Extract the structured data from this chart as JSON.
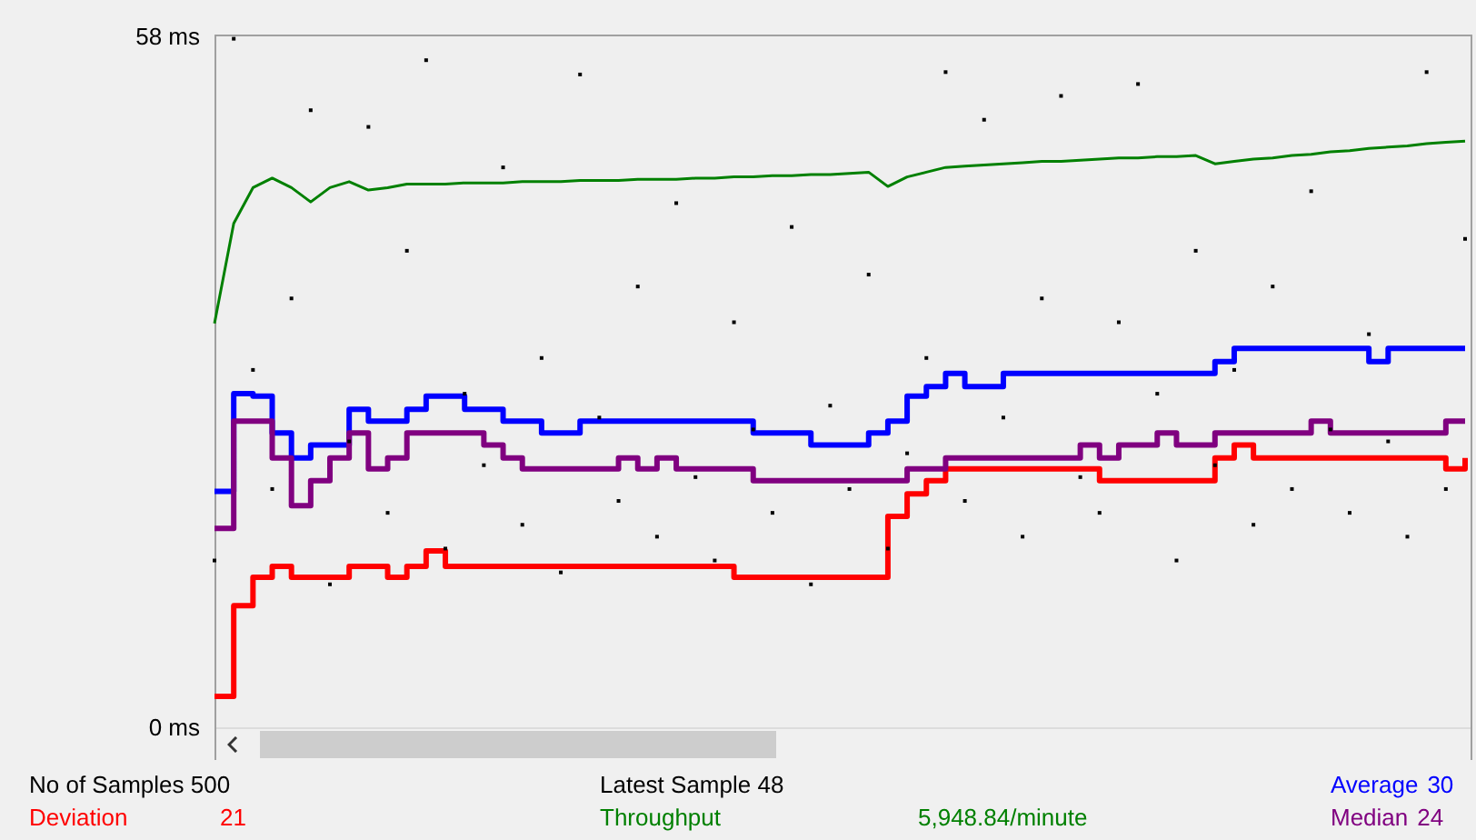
{
  "chart_data": {
    "type": "line",
    "categories": [
      null,
      null,
      null,
      null,
      null,
      null,
      null,
      null,
      null,
      null,
      null,
      null,
      null,
      null,
      null,
      null,
      null,
      null,
      null,
      null,
      null,
      null,
      null,
      null,
      null,
      null,
      null,
      null,
      null,
      null,
      null,
      null,
      null,
      null,
      null,
      null,
      null,
      null,
      null,
      null,
      null,
      null,
      null,
      null,
      null,
      null,
      null,
      null,
      null,
      null,
      null,
      null,
      null,
      null,
      null,
      null,
      null,
      null,
      null,
      null,
      null,
      null,
      null,
      null,
      null,
      null
    ],
    "ylim": [
      0,
      58
    ],
    "yticks": [
      {
        "value": 0,
        "label": "0  ms"
      },
      {
        "value": 58,
        "label": "58  ms"
      }
    ],
    "tick_labels": "y",
    "grid": false,
    "legend": "bottom",
    "series": [
      {
        "type": "scatter",
        "color": "#000000",
        "values": [
          14,
          57.8,
          30,
          20,
          36,
          51.8,
          12,
          24,
          50.4,
          18,
          40,
          56,
          15,
          28,
          22,
          47,
          17,
          31,
          13,
          54.8,
          26,
          19,
          37,
          16,
          44,
          21,
          14,
          34,
          25,
          18,
          42,
          12,
          27,
          20,
          38,
          15,
          23,
          31,
          55,
          19,
          51,
          26,
          16,
          36,
          53,
          21,
          18,
          34,
          54,
          28,
          14,
          40,
          22,
          30,
          17,
          37,
          20,
          45,
          25,
          18,
          33,
          24,
          16,
          55,
          20,
          41
        ]
      },
      {
        "name": "Average",
        "type": "step",
        "color": "#0000ff",
        "values": [
          19.8,
          28,
          27.8,
          24.7,
          22.6,
          23.7,
          23.7,
          26.7,
          25.7,
          25.7,
          26.7,
          27.8,
          27.8,
          26.7,
          26.7,
          25.7,
          25.7,
          24.7,
          24.7,
          25.7,
          25.7,
          25.7,
          25.7,
          25.7,
          25.7,
          25.7,
          25.7,
          25.7,
          24.7,
          24.7,
          24.7,
          23.7,
          23.7,
          23.7,
          24.7,
          25.7,
          27.8,
          28.6,
          29.7,
          28.6,
          28.6,
          29.7,
          29.7,
          29.7,
          29.7,
          29.7,
          29.7,
          29.7,
          29.7,
          29.7,
          29.7,
          29.7,
          30.7,
          31.8,
          31.8,
          31.8,
          31.8,
          31.8,
          31.8,
          31.8,
          30.7,
          31.8,
          31.8,
          31.8,
          31.8,
          31.8
        ]
      },
      {
        "name": "Deviation",
        "type": "step",
        "color": "#ff0000",
        "values": [
          2.6,
          10.2,
          12.6,
          13.5,
          12.6,
          12.6,
          12.6,
          13.5,
          13.5,
          12.6,
          13.5,
          14.8,
          13.5,
          13.5,
          13.5,
          13.5,
          13.5,
          13.5,
          13.5,
          13.5,
          13.5,
          13.5,
          13.5,
          13.5,
          13.5,
          13.5,
          13.5,
          12.6,
          12.6,
          12.6,
          12.6,
          12.6,
          12.6,
          12.6,
          12.6,
          17.7,
          19.6,
          20.7,
          21.7,
          21.7,
          21.7,
          21.7,
          21.7,
          21.7,
          21.7,
          21.7,
          20.7,
          20.7,
          20.7,
          20.7,
          20.7,
          20.7,
          22.6,
          23.7,
          22.6,
          22.6,
          22.6,
          22.6,
          22.6,
          22.6,
          22.6,
          22.6,
          22.6,
          22.6,
          21.7,
          22.6
        ]
      },
      {
        "name": "Throughput",
        "color": "#008000",
        "values": [
          33.9,
          42.3,
          45.3,
          46.1,
          45.3,
          44.1,
          45.3,
          45.8,
          45.1,
          45.3,
          45.6,
          45.6,
          45.6,
          45.7,
          45.7,
          45.7,
          45.8,
          45.8,
          45.8,
          45.9,
          45.9,
          45.9,
          46,
          46,
          46,
          46.1,
          46.1,
          46.2,
          46.2,
          46.3,
          46.3,
          46.4,
          46.4,
          46.5,
          46.6,
          45.4,
          46.2,
          46.6,
          47,
          47.1,
          47.2,
          47.3,
          47.4,
          47.5,
          47.5,
          47.6,
          47.7,
          47.8,
          47.8,
          47.9,
          47.9,
          48,
          47.3,
          47.5,
          47.7,
          47.8,
          48,
          48.1,
          48.3,
          48.4,
          48.6,
          48.7,
          48.8,
          49,
          49.1,
          49.2
        ]
      },
      {
        "name": "Median",
        "type": "step",
        "color": "#800080",
        "values": [
          16.7,
          25.7,
          25.7,
          22.6,
          18.6,
          20.7,
          22.6,
          24.7,
          21.7,
          22.6,
          24.7,
          24.7,
          24.7,
          24.7,
          23.7,
          22.6,
          21.7,
          21.7,
          21.7,
          21.7,
          21.7,
          22.6,
          21.7,
          22.6,
          21.7,
          21.7,
          21.7,
          21.7,
          20.7,
          20.7,
          20.7,
          20.7,
          20.7,
          20.7,
          20.7,
          20.7,
          21.7,
          21.7,
          22.6,
          22.6,
          22.6,
          22.6,
          22.6,
          22.6,
          22.6,
          23.7,
          22.6,
          23.7,
          23.7,
          24.7,
          23.7,
          23.7,
          24.7,
          24.7,
          24.7,
          24.7,
          24.7,
          25.7,
          24.7,
          24.7,
          24.7,
          24.7,
          24.7,
          24.7,
          25.7,
          25.7
        ]
      }
    ],
    "annotations": [
      "No of Samples 500",
      "Latest Sample 48",
      "30",
      "21",
      "5,948.84/minute",
      "24"
    ]
  }
}
